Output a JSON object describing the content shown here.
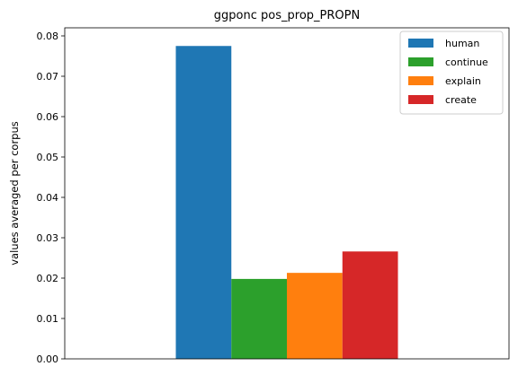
{
  "chart_data": {
    "type": "bar",
    "title": "ggponc pos_prop_PROPN",
    "xlabel": "",
    "ylabel": "values averaged per corpus",
    "ylim": [
      0,
      0.082
    ],
    "yticks": [
      "0.00",
      "0.01",
      "0.02",
      "0.03",
      "0.04",
      "0.05",
      "0.06",
      "0.07",
      "0.08"
    ],
    "grid": false,
    "legend_position": "top-right",
    "categories": [
      ""
    ],
    "series": [
      {
        "name": "human",
        "values": [
          0.0775
        ],
        "color": "#1f77b4"
      },
      {
        "name": "continue",
        "values": [
          0.0198
        ],
        "color": "#2ca02c"
      },
      {
        "name": "explain",
        "values": [
          0.0213
        ],
        "color": "#ff7f0e"
      },
      {
        "name": "create",
        "values": [
          0.0266
        ],
        "color": "#d62728"
      }
    ]
  }
}
